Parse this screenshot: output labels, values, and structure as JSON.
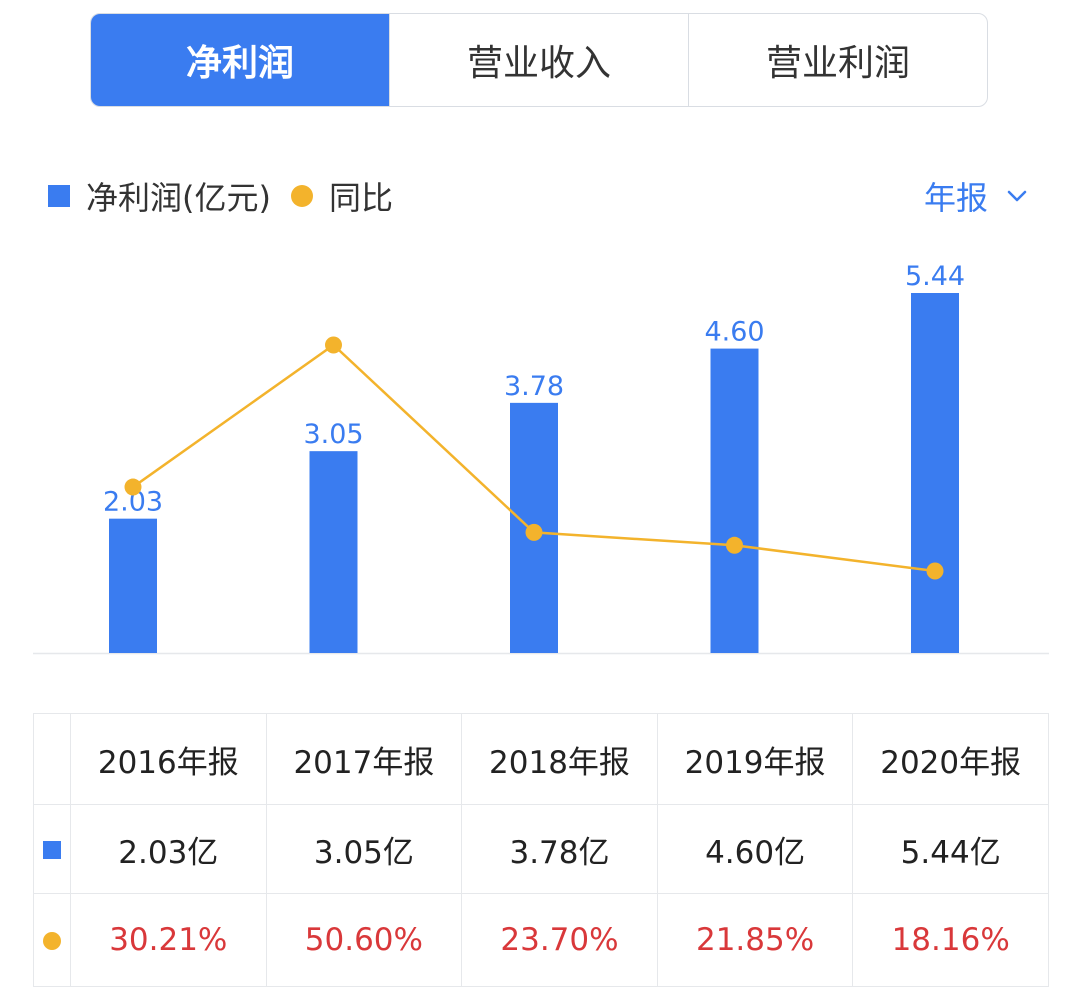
{
  "tabs": [
    {
      "label": "净利润",
      "active": true
    },
    {
      "label": "营业收入",
      "active": false
    },
    {
      "label": "营业利润",
      "active": false
    }
  ],
  "legend": {
    "bar_label": "净利润(亿元)",
    "line_label": "同比"
  },
  "period_selector": {
    "label": "年报",
    "icon": "chevron-down-icon"
  },
  "colors": {
    "bar": "#3a7cf0",
    "line": "#f3b32c",
    "yoy_text": "#d9383a",
    "tab_active": "#3a7cf0"
  },
  "chart_data": {
    "type": "bar",
    "categories": [
      "2016年报",
      "2017年报",
      "2018年报",
      "2019年报",
      "2020年报"
    ],
    "series": [
      {
        "name": "净利润(亿元)",
        "type": "bar",
        "values": [
          2.03,
          3.05,
          3.78,
          4.6,
          5.44
        ],
        "labels": [
          "2.03",
          "3.05",
          "3.78",
          "4.60",
          "5.44"
        ]
      },
      {
        "name": "同比",
        "type": "line",
        "values": [
          30.21,
          50.6,
          23.7,
          21.85,
          18.16
        ]
      }
    ],
    "ylim": [
      0,
      5.44
    ],
    "grid": false
  },
  "table": {
    "headers": [
      "2016年报",
      "2017年报",
      "2018年报",
      "2019年报",
      "2020年报"
    ],
    "values": [
      "2.03亿",
      "3.05亿",
      "3.78亿",
      "4.60亿",
      "5.44亿"
    ],
    "yoy": [
      "30.21%",
      "50.60%",
      "23.70%",
      "21.85%",
      "18.16%"
    ]
  }
}
